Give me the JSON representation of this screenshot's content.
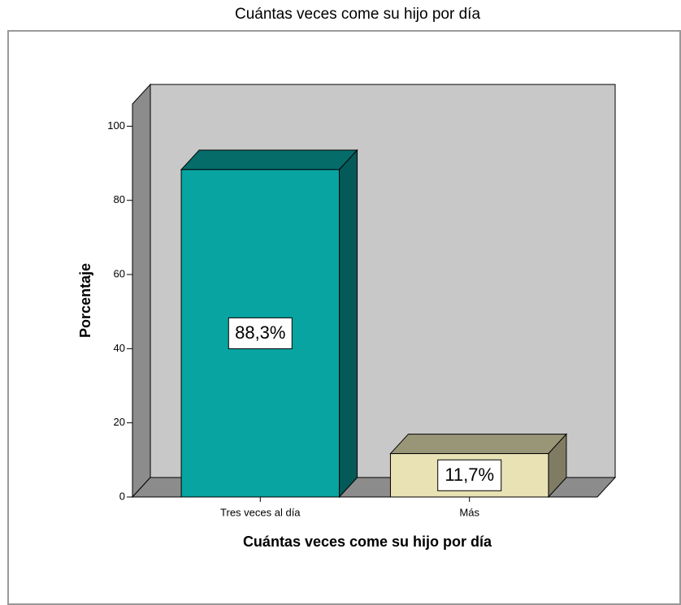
{
  "chart_data": {
    "type": "bar3d",
    "title": "Cuántas veces come su hijo por día",
    "x_label": "Cuántas veces come su hijo por día",
    "y_label": "Porcentaje",
    "categories": [
      "Tres veces al día",
      "Más"
    ],
    "values": [
      88.3,
      11.7
    ],
    "value_labels": [
      "88,3%",
      "11,7%"
    ],
    "colors": [
      "#07a4a1",
      "#e8e2b4"
    ],
    "ylim": [
      0,
      106
    ],
    "yticks": [
      0,
      20,
      40,
      60,
      80,
      100
    ]
  }
}
